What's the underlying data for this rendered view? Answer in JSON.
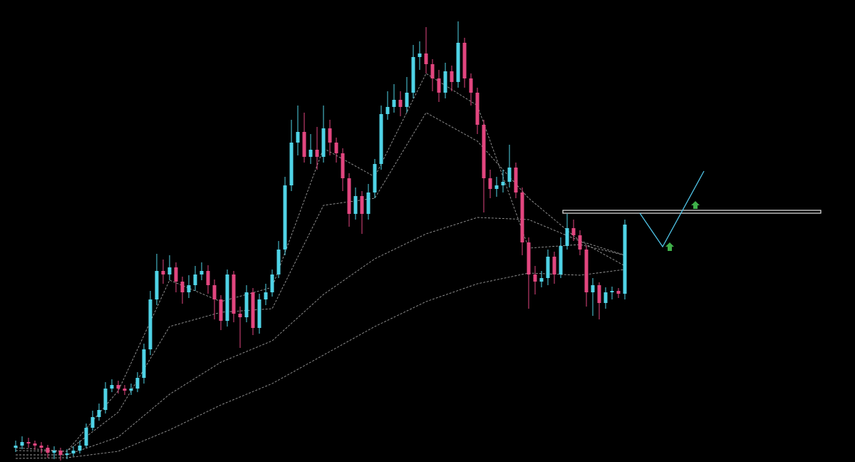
{
  "chart_data": {
    "type": "candlestick",
    "ylim": [
      0,
      648
    ],
    "up_color": "#4fd3e6",
    "down_color": "#e2467f",
    "ma_color": "#9a9a9a",
    "open": [
      20,
      23,
      28,
      26,
      23,
      20,
      13,
      16,
      10,
      12,
      16,
      23,
      48,
      63,
      73,
      103,
      108,
      103,
      100,
      103,
      118,
      158,
      228,
      268,
      263,
      273,
      253,
      238,
      248,
      263,
      268,
      248,
      228,
      198,
      263,
      208,
      203,
      238,
      188,
      228,
      238,
      263,
      298,
      388,
      448,
      463,
      428,
      438,
      428,
      468,
      448,
      433,
      398,
      348,
      373,
      348,
      378,
      418,
      488,
      498,
      508,
      498,
      518,
      568,
      573,
      558,
      538,
      518,
      548,
      533,
      588,
      538,
      518,
      473,
      398,
      383,
      388,
      393,
      413,
      378,
      308,
      263,
      253,
      258,
      288,
      263,
      303,
      328,
      318,
      298,
      238,
      248,
      223,
      238,
      240,
      236
    ],
    "high": [
      30,
      36,
      34,
      30,
      28,
      24,
      22,
      20,
      18,
      22,
      30,
      54,
      72,
      82,
      112,
      116,
      114,
      108,
      110,
      126,
      166,
      240,
      292,
      284,
      290,
      280,
      260,
      262,
      275,
      280,
      276,
      256,
      234,
      270,
      268,
      218,
      248,
      244,
      236,
      250,
      270,
      310,
      400,
      480,
      500,
      490,
      460,
      470,
      500,
      480,
      455,
      440,
      405,
      385,
      380,
      390,
      425,
      500,
      520,
      530,
      520,
      540,
      585,
      590,
      610,
      565,
      550,
      560,
      556,
      618,
      595,
      545,
      525,
      480,
      410,
      400,
      410,
      445,
      420,
      385,
      315,
      275,
      268,
      298,
      295,
      315,
      348,
      340,
      325,
      304,
      258,
      252,
      245,
      246,
      244,
      340
    ],
    "low": [
      14,
      18,
      20,
      17,
      12,
      6,
      4,
      2,
      4,
      8,
      12,
      20,
      44,
      58,
      68,
      98,
      96,
      94,
      94,
      98,
      110,
      150,
      220,
      250,
      255,
      238,
      222,
      230,
      240,
      255,
      236,
      200,
      185,
      190,
      196,
      160,
      196,
      178,
      180,
      220,
      232,
      258,
      290,
      380,
      430,
      420,
      418,
      410,
      420,
      430,
      420,
      380,
      330,
      340,
      320,
      340,
      370,
      410,
      480,
      490,
      485,
      490,
      510,
      550,
      545,
      520,
      505,
      510,
      520,
      525,
      525,
      500,
      460,
      350,
      370,
      372,
      378,
      385,
      370,
      290,
      215,
      235,
      245,
      248,
      250,
      258,
      298,
      310,
      290,
      218,
      205,
      200,
      215,
      228,
      230,
      228
    ],
    "close": [
      23,
      28,
      26,
      23,
      20,
      13,
      16,
      10,
      12,
      16,
      23,
      48,
      63,
      73,
      103,
      108,
      103,
      100,
      103,
      118,
      158,
      228,
      268,
      263,
      273,
      253,
      238,
      248,
      263,
      268,
      248,
      228,
      198,
      263,
      208,
      203,
      238,
      188,
      228,
      238,
      263,
      298,
      388,
      448,
      463,
      428,
      438,
      428,
      468,
      448,
      433,
      398,
      348,
      373,
      348,
      378,
      418,
      488,
      498,
      508,
      498,
      518,
      568,
      573,
      558,
      538,
      518,
      548,
      533,
      588,
      538,
      518,
      473,
      398,
      383,
      388,
      393,
      413,
      378,
      308,
      263,
      253,
      258,
      288,
      263,
      303,
      328,
      318,
      298,
      238,
      248,
      223,
      238,
      240,
      236,
      333
    ],
    "ma_x": [
      0,
      8,
      16,
      24,
      32,
      40,
      48,
      56,
      64,
      72,
      80,
      88,
      95
    ],
    "moving_averages": [
      {
        "values": [
          20,
          15,
          100,
          255,
          225,
          245,
          440,
          400,
          545,
          500,
          300,
          305,
          290
        ]
      },
      {
        "values": [
          16,
          15,
          70,
          190,
          210,
          215,
          360,
          370,
          490,
          450,
          370,
          310,
          275
        ]
      },
      {
        "values": [
          10,
          10,
          35,
          95,
          140,
          170,
          235,
          285,
          320,
          343,
          340,
          310,
          290
        ]
      },
      {
        "values": [
          5,
          6,
          15,
          45,
          80,
          110,
          150,
          190,
          225,
          250,
          265,
          262,
          270
        ]
      }
    ]
  }
}
